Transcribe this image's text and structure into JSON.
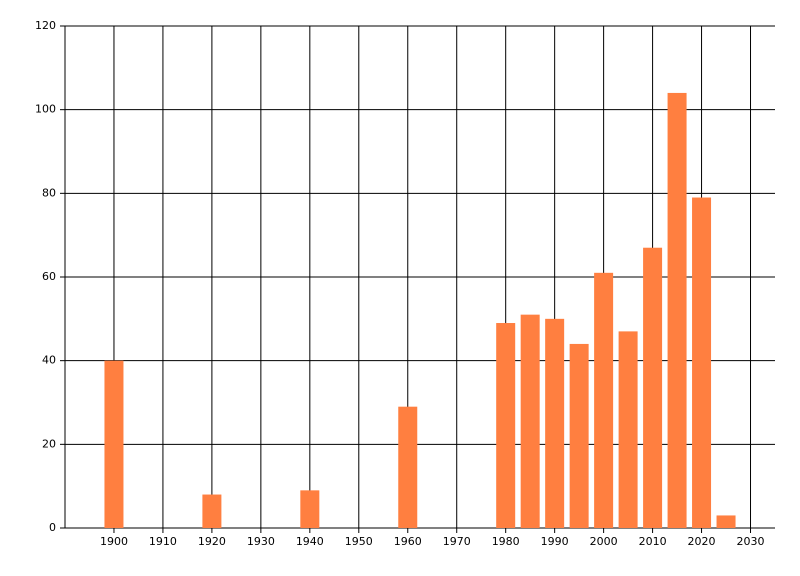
{
  "chart_data": {
    "type": "bar",
    "x": [
      1900,
      1920,
      1940,
      1960,
      1980,
      1985,
      1990,
      1995,
      2000,
      2005,
      2010,
      2015,
      2020,
      2025
    ],
    "values": [
      40,
      8,
      9,
      29,
      49,
      51,
      50,
      44,
      61,
      47,
      67,
      104,
      79,
      3
    ],
    "color": "#ff7f40",
    "xlim": [
      1890,
      2035
    ],
    "xticks": [
      1900,
      1910,
      1920,
      1930,
      1940,
      1950,
      1960,
      1970,
      1980,
      1990,
      2000,
      2010,
      2020,
      2030
    ],
    "ylim": [
      0,
      120
    ],
    "yticks": [
      0,
      20,
      40,
      60,
      80,
      100,
      120
    ],
    "grid": true
  }
}
